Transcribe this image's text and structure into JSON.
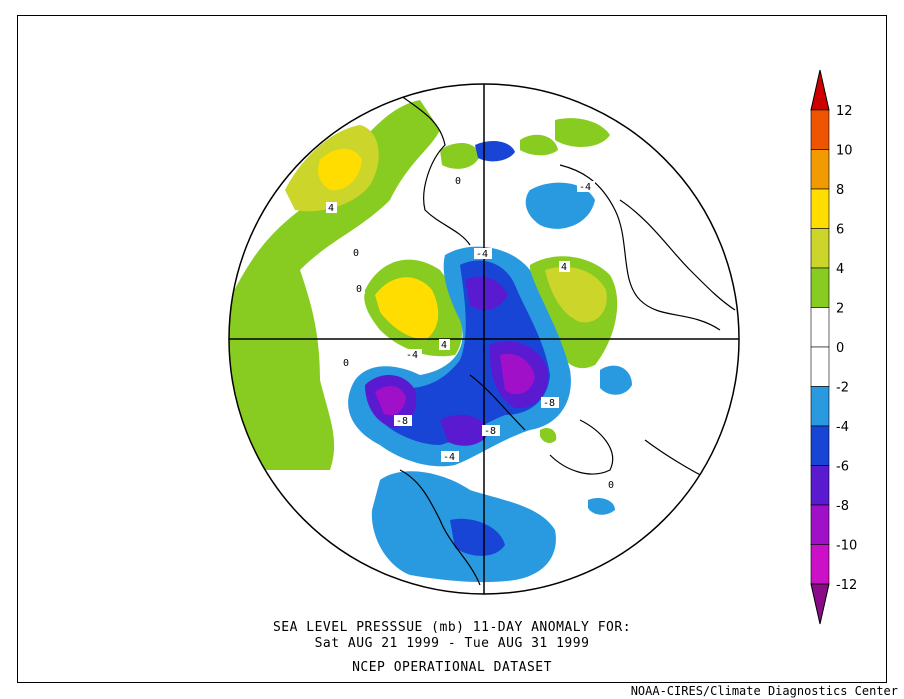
{
  "title": {
    "line1": "SEA LEVEL PRESSSUE (mb)   11-DAY ANOMALY FOR:",
    "line2": "Sat AUG 21 1999 - Tue AUG 31 1999",
    "line3": "NCEP OPERATIONAL DATASET"
  },
  "credit": "NOAA-CIRES/Climate Diagnostics Center",
  "colorbar": {
    "levels": [
      {
        "from": 12,
        "to": 14,
        "color": "#cc0000"
      },
      {
        "from": 10,
        "to": 12,
        "color": "#ee5500"
      },
      {
        "from": 8,
        "to": 10,
        "color": "#f29b00"
      },
      {
        "from": 6,
        "to": 8,
        "color": "#ffdd00"
      },
      {
        "from": 4,
        "to": 6,
        "color": "#ccd62a"
      },
      {
        "from": 2,
        "to": 4,
        "color": "#88cc22"
      },
      {
        "from": 0,
        "to": 2,
        "color": "#ffffff"
      },
      {
        "from": -2,
        "to": 0,
        "color": "#ffffff"
      },
      {
        "from": -4,
        "to": -2,
        "color": "#2a9ae0"
      },
      {
        "from": -6,
        "to": -4,
        "color": "#1845d6"
      },
      {
        "from": -8,
        "to": -6,
        "color": "#5a1ad0"
      },
      {
        "from": -10,
        "to": -8,
        "color": "#a010c8"
      },
      {
        "from": -12,
        "to": -10,
        "color": "#cc10c8"
      },
      {
        "from": -14,
        "to": -12,
        "color": "#8a0a8a"
      }
    ],
    "tick_labels": [
      "12",
      "10",
      "8",
      "6",
      "4",
      "2",
      "0",
      "-2",
      "-4",
      "-6",
      "-8",
      "-10",
      "-12"
    ]
  },
  "contour_labels": [
    "4",
    "0",
    "0",
    "-4",
    "0",
    "4",
    "-4",
    "4",
    "-4",
    "-8",
    "-8",
    "-8",
    "-4",
    "0",
    "0"
  ]
}
